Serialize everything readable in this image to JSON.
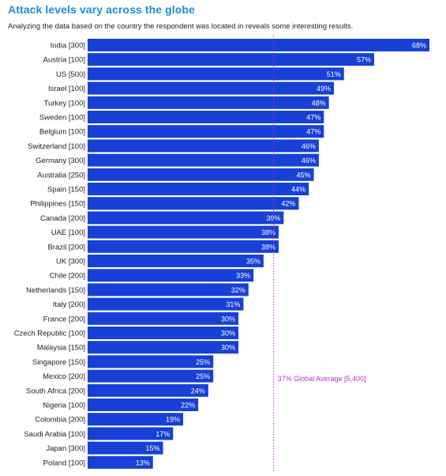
{
  "colors": {
    "title": "#1a8fd0",
    "bar": "#1640d6",
    "average": "#b23ac2",
    "value_text": "#ffffff",
    "label_text": "#222222"
  },
  "chart_data": {
    "type": "bar",
    "orientation": "horizontal",
    "title": "Attack levels vary across the globe",
    "subtitle": "Analyzing the data based on the country the respondent was located in reveals some interesting results.",
    "categories": [
      "India [300]",
      "Austria [100]",
      "US [500]",
      "Israel [100]",
      "Turkey [100]",
      "Sweden [100]",
      "Belgium [100]",
      "Switzerland [100]",
      "Germany [300]",
      "Australia [250]",
      "Spain [150]",
      "Philippines [150]",
      "Canada [200]",
      "UAE [100]",
      "Brazil [200]",
      "UK [300]",
      "Chile [200]",
      "Netherlands [150]",
      "Italy [200]",
      "France [200]",
      "Czech Republic [100]",
      "Malaysia [150]",
      "Singapore [150]",
      "Mexico [200]",
      "South Africa [200]",
      "Nigeria [100]",
      "Colombia [200]",
      "Saudi Arabia [100]",
      "Japan [300]",
      "Poland [100]"
    ],
    "values": [
      68,
      57,
      51,
      49,
      48,
      47,
      47,
      46,
      46,
      45,
      44,
      42,
      39,
      38,
      38,
      35,
      33,
      32,
      31,
      30,
      30,
      30,
      25,
      25,
      24,
      22,
      19,
      17,
      15,
      13
    ],
    "value_labels": [
      "68%",
      "57%",
      "51%",
      "49%",
      "48%",
      "47%",
      "47%",
      "46%",
      "46%",
      "45%",
      "44%",
      "42%",
      "39%",
      "38%",
      "38%",
      "35%",
      "33%",
      "32%",
      "31%",
      "30%",
      "30%",
      "30%",
      "25%",
      "25%",
      "24%",
      "22%",
      "19%",
      "17%",
      "15%",
      "13%"
    ],
    "xlim": [
      0,
      68
    ],
    "reference_line": {
      "value": 37,
      "label": "37% Global Average [5,400]",
      "style": "dotted"
    },
    "grid": false,
    "legend": "none"
  }
}
